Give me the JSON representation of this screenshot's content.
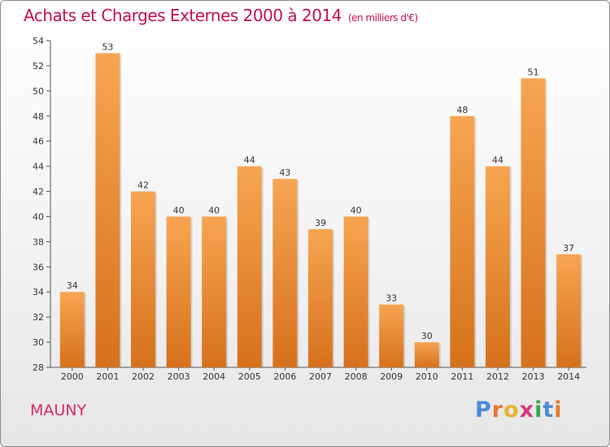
{
  "chart_data": {
    "type": "bar",
    "title": "Achats et Charges Externes 2000 à 2014",
    "subtitle": "(en milliers d'€)",
    "categories": [
      "2000",
      "2001",
      "2002",
      "2003",
      "2004",
      "2005",
      "2006",
      "2007",
      "2008",
      "2009",
      "2010",
      "2011",
      "2012",
      "2013",
      "2014"
    ],
    "values": [
      34,
      53,
      42,
      40,
      40,
      44,
      43,
      39,
      40,
      33,
      30,
      48,
      44,
      51,
      37
    ],
    "ylim": [
      28,
      54
    ],
    "yticks": [
      28,
      30,
      32,
      34,
      36,
      38,
      40,
      42,
      44,
      46,
      48,
      50,
      52,
      54
    ],
    "grid": false,
    "bar_color_top": "#f7a552",
    "bar_color_bottom": "#d6711c"
  },
  "commune": "MAUNY",
  "logo": {
    "text": "Proxiti",
    "letter_colors": [
      "#4a8ad6",
      "#e8772e",
      "#e8b22e",
      "#d63a7a",
      "#3aa84a",
      "#4a8ad6",
      "#e8772e"
    ]
  },
  "colors": {
    "title": "#c4124b",
    "commune": "#d9296b"
  }
}
